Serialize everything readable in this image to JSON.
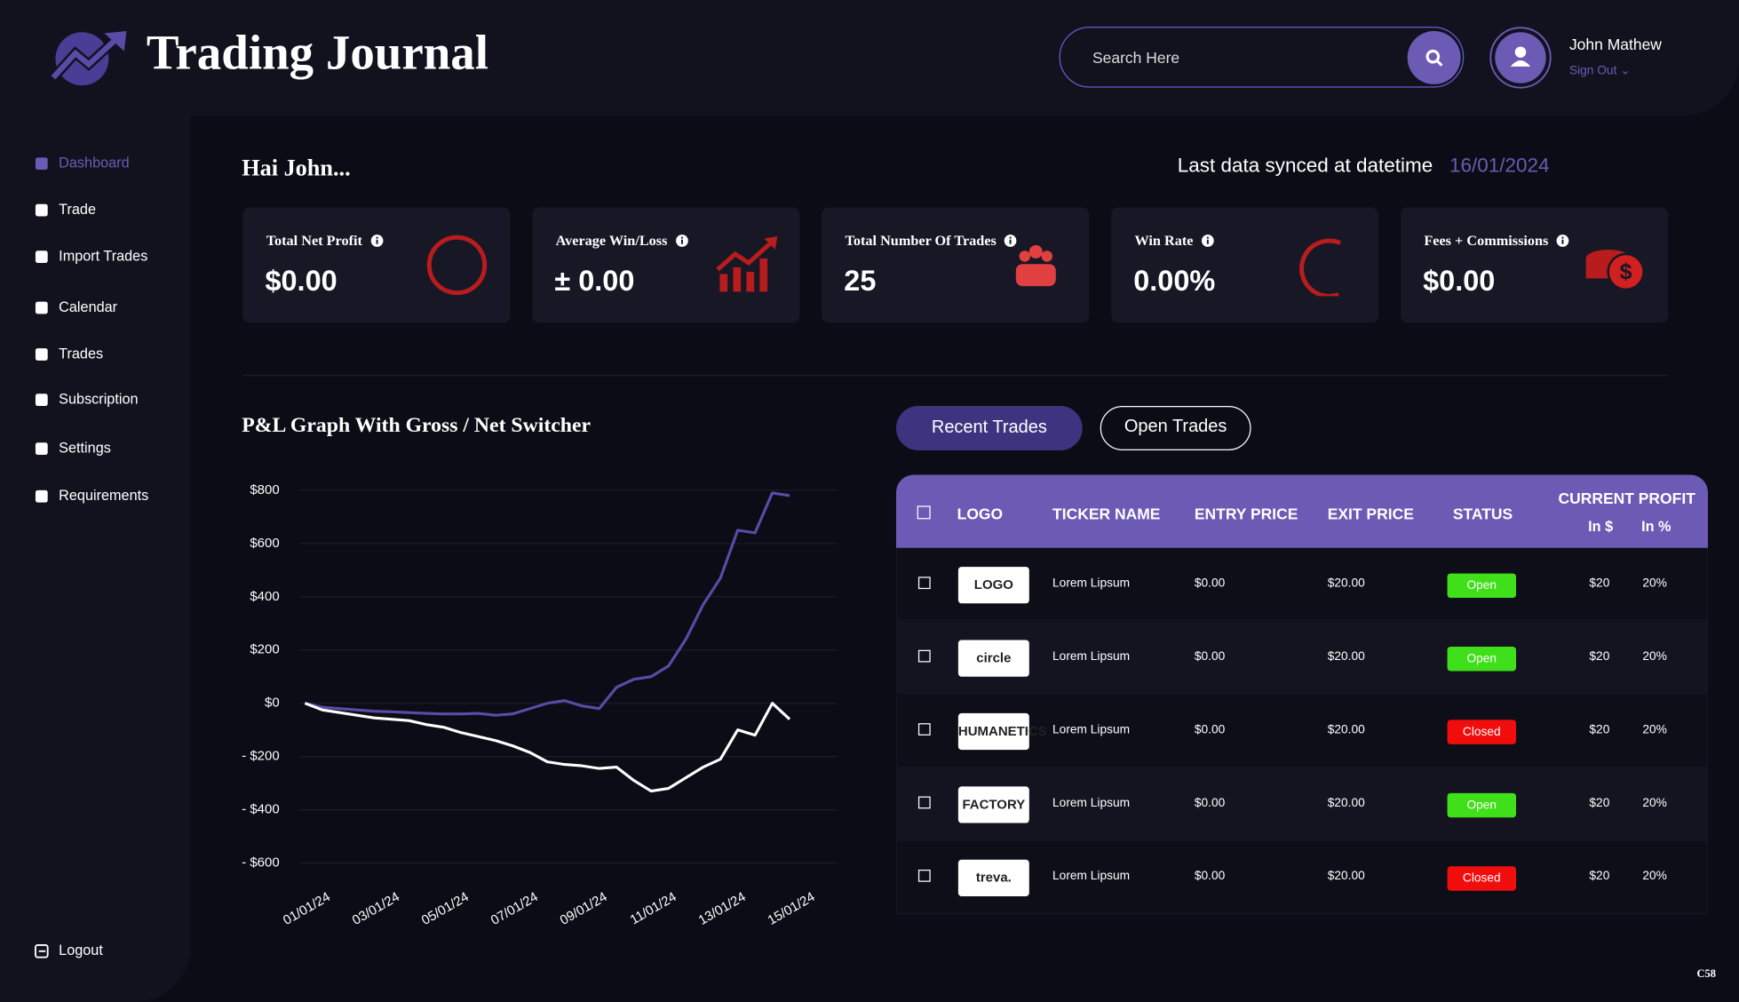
{
  "header": {
    "title": "Trading Journal",
    "search_placeholder": "Search Here",
    "user_name": "John Mathew",
    "sign_out": "Sign Out"
  },
  "sidebar": {
    "items": [
      "Dashboard",
      "Trade",
      "Import Trades",
      "Calendar",
      "Trades",
      "Subscription",
      "Settings",
      "Requirements"
    ],
    "logout": "Logout"
  },
  "greeting": "Hai John...",
  "sync": {
    "label": "Last data synced at datetime",
    "date": "16/01/2024"
  },
  "stats": [
    {
      "title": "Total Net Profit",
      "value": "$0.00"
    },
    {
      "title": "Average Win/Loss",
      "value": "± 0.00"
    },
    {
      "title": "Total Number Of Trades",
      "value": "25"
    },
    {
      "title": "Win Rate",
      "value": "0.00%"
    },
    {
      "title": "Fees + Commissions",
      "value": "$0.00"
    }
  ],
  "chart_data": {
    "type": "line",
    "title": "P&L Graph With Gross / Net Switcher",
    "x": [
      "01/01/24",
      null,
      null,
      null,
      "03/01/24",
      null,
      null,
      null,
      "05/01/24",
      null,
      null,
      null,
      "07/01/24",
      null,
      null,
      null,
      "09/01/24",
      null,
      null,
      null,
      "11/01/24",
      null,
      null,
      null,
      "13/01/24",
      null,
      null,
      null,
      "15/01/24"
    ],
    "series": [
      {
        "color": "#5b4ba8",
        "values": [
          0,
          -15,
          -20,
          -25,
          -30,
          -32,
          -35,
          -38,
          -40,
          -40,
          -38,
          -45,
          -40,
          -20,
          0,
          10,
          -10,
          -20,
          60,
          90,
          100,
          140,
          240,
          370,
          470,
          650,
          640,
          790,
          780
        ]
      },
      {
        "color": "#ffffff",
        "values": [
          0,
          -25,
          -35,
          -45,
          -55,
          -60,
          -65,
          -80,
          -90,
          -110,
          -125,
          -140,
          -160,
          -185,
          -220,
          -230,
          -235,
          -245,
          -240,
          -290,
          -330,
          -320,
          -280,
          -240,
          -210,
          -100,
          -120,
          0,
          -60
        ]
      }
    ],
    "ylim": [
      -650,
      850
    ],
    "yticks": [
      {
        "value": 800,
        "label": "$800"
      },
      {
        "value": 600,
        "label": "$600"
      },
      {
        "value": 400,
        "label": "$400"
      },
      {
        "value": 200,
        "label": "$200"
      },
      {
        "value": 0,
        "label": "$0"
      },
      {
        "value": -200,
        "label": "- $200"
      },
      {
        "value": -400,
        "label": "- $400"
      },
      {
        "value": -600,
        "label": "- $600"
      }
    ],
    "grid": true
  },
  "tabs": [
    "Recent Trades",
    "Open Trades"
  ],
  "table": {
    "columns": [
      "LOGO",
      "TICKER NAME",
      "ENTRY PRICE",
      "EXIT PRICE",
      "STATUS"
    ],
    "profit_header": "CURRENT PROFIT",
    "profit_columns": [
      "In $",
      "In %"
    ],
    "rows": [
      {
        "logo": "LOGO",
        "ticker": "Lorem Lipsum",
        "entry": "$0.00",
        "exit": "$20.00",
        "status": "Open",
        "status_color": "#3fe019",
        "profit_usd": "$20",
        "profit_pct": "20%"
      },
      {
        "logo": "circle",
        "ticker": "Lorem Lipsum",
        "entry": "$0.00",
        "exit": "$20.00",
        "status": "Open",
        "status_color": "#3fe019",
        "profit_usd": "$20",
        "profit_pct": "20%"
      },
      {
        "logo": "HUMANETICS",
        "ticker": "Lorem Lipsum",
        "entry": "$0.00",
        "exit": "$20.00",
        "status": "Closed",
        "status_color": "#f20d0d",
        "profit_usd": "$20",
        "profit_pct": "20%"
      },
      {
        "logo": "FACTORY",
        "ticker": "Lorem Lipsum",
        "entry": "$0.00",
        "exit": "$20.00",
        "status": "Open",
        "status_color": "#3fe019",
        "profit_usd": "$20",
        "profit_pct": "20%"
      },
      {
        "logo": "treva.",
        "ticker": "Lorem Lipsum",
        "entry": "$0.00",
        "exit": "$20.00",
        "status": "Closed",
        "status_color": "#f20d0d",
        "profit_usd": "$20",
        "profit_pct": "20%"
      }
    ]
  },
  "footer_code": "C58"
}
